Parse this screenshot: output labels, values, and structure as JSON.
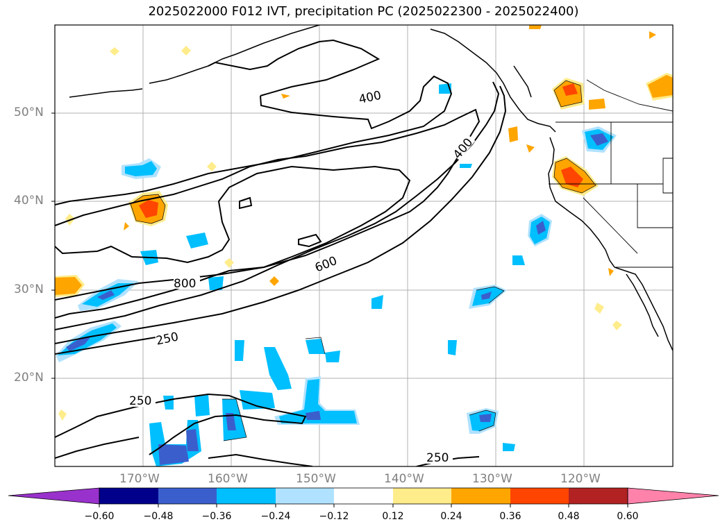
{
  "title": "2025022000 F012 IVT, precipitation PC (2025022300 - 2025022400)",
  "lat_labels": [
    "50°N",
    "40°N",
    "30°N",
    "20°N"
  ],
  "lon_labels": [
    "170°W",
    "160°W",
    "150°W",
    "140°W",
    "130°W",
    "120°W"
  ],
  "contour_labels": [
    "400",
    "400",
    "600",
    "800",
    "250",
    "250",
    "250"
  ],
  "colorbar": {
    "colors": [
      "#9932cc",
      "#00008b",
      "#3a5fcd",
      "#00bfff",
      "#b0e2ff",
      "#ffffff",
      "#ffec8b",
      "#ffa500",
      "#ff4500",
      "#b22222",
      "#ff82ab"
    ],
    "ticks": [
      "−0.60",
      "−0.48",
      "−0.36",
      "−0.24",
      "−0.12",
      "0.12",
      "0.24",
      "0.36",
      "0.48",
      "0.60"
    ]
  }
}
